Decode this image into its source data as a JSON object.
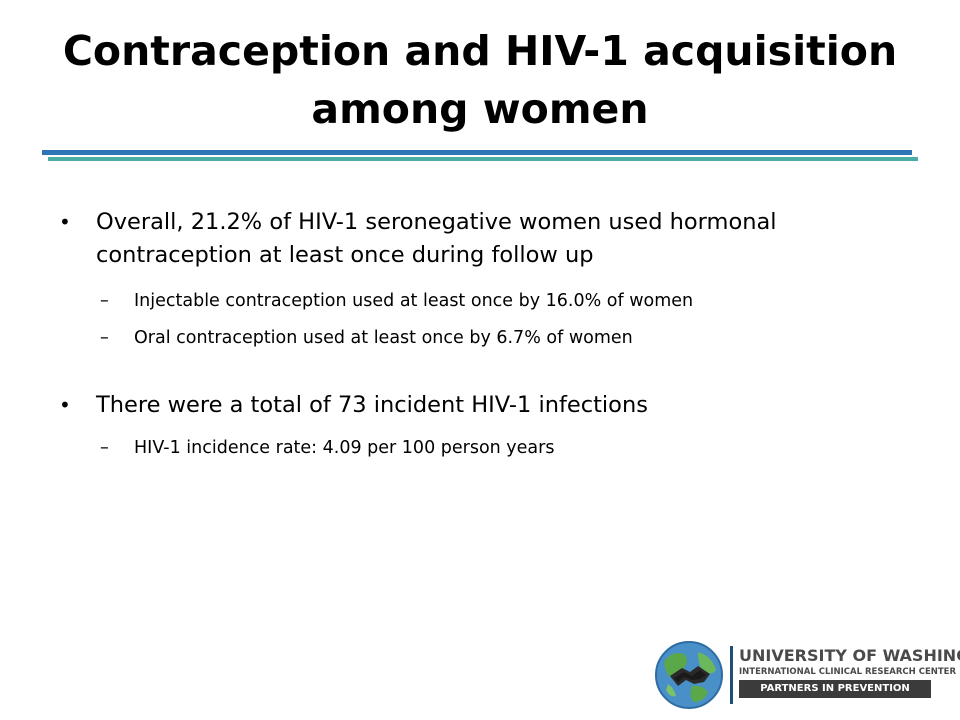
{
  "slide": {
    "title": "Contraception and HIV-1 acquisition among women"
  },
  "bullets": [
    {
      "text": "Overall, 21.2% of HIV-1 seronegative women used hormonal contraception at least once during follow up",
      "sub": [
        "Injectable contraception used at least once by 16.0% of women",
        "Oral contraception used at least once by 6.7% of women"
      ]
    },
    {
      "text": "There were a total of 73 incident HIV-1 infections",
      "sub": [
        "HIV-1 incidence rate: 4.09 per 100 person years"
      ]
    }
  ],
  "bullet_glyph": "•",
  "sub_bullet_glyph": "–",
  "logo": {
    "icon": "globe-handshake-icon",
    "line1": "UNIVERSITY OF WASHINGTON",
    "line2": "INTERNATIONAL CLINICAL RESEARCH CENTER",
    "line3": "PARTNERS IN PREVENTION"
  },
  "colors": {
    "rule_blue": "#2e75b6",
    "rule_teal": "#4aaca2",
    "logo_text": "#4a4a4a",
    "logo_banner": "#3b3b3b"
  }
}
